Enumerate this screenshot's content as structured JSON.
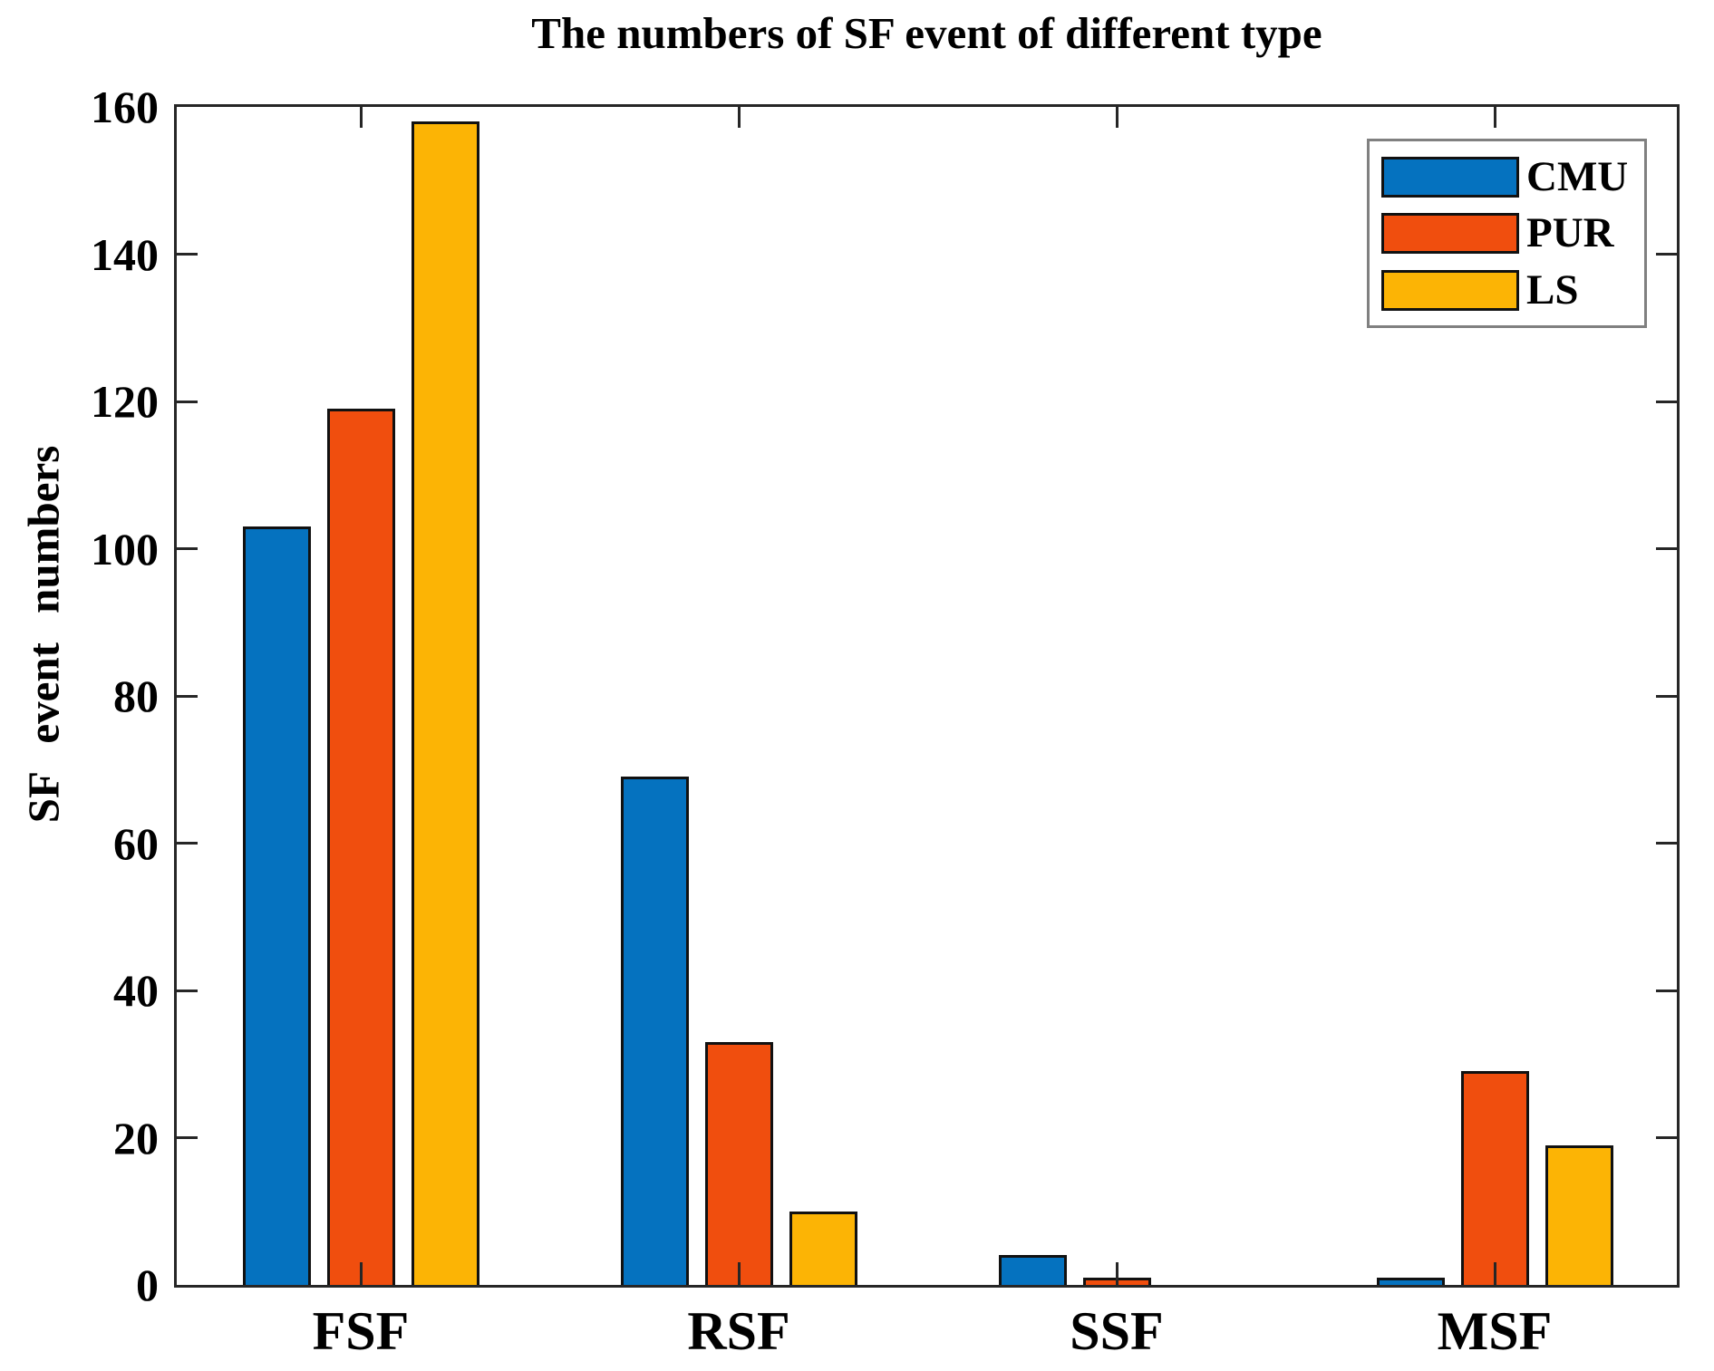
{
  "title": "The numbers of SF event of different type",
  "colors": {
    "axis": "#262626",
    "bar_edge": "#111111",
    "legend_border": "#808080",
    "cmu_blue": "#0572bf",
    "pur_orange": "#f04e0e",
    "ls_yellow": "#fcb405"
  },
  "chart_data": {
    "type": "bar",
    "title": "The numbers of SF event of different type",
    "xlabel": "",
    "ylabel": "SF event numbers",
    "categories": [
      "FSF",
      "RSF",
      "SSF",
      "MSF"
    ],
    "series": [
      {
        "name": "CMU",
        "color": "#0572bf",
        "values": [
          103,
          69,
          4,
          1
        ]
      },
      {
        "name": "PUR",
        "color": "#f04e0e",
        "values": [
          119,
          33,
          1,
          29
        ]
      },
      {
        "name": "LS",
        "color": "#fcb405",
        "values": [
          158,
          10,
          0,
          19
        ]
      }
    ],
    "ylim": [
      0,
      160
    ],
    "yticks": [
      0,
      20,
      40,
      60,
      80,
      100,
      120,
      140,
      160
    ],
    "grid": false,
    "legend_position": "top-right",
    "legend_entries": [
      "CMU",
      "PUR",
      "LS"
    ]
  }
}
